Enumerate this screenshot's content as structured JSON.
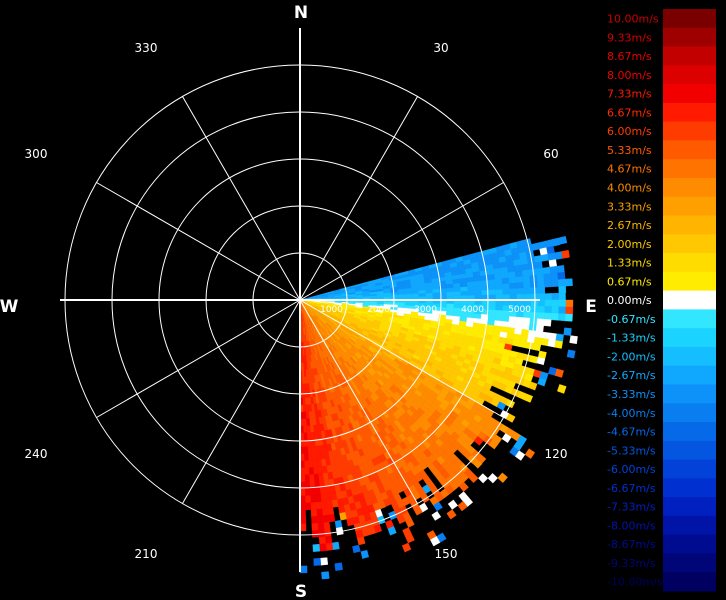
{
  "compass": {
    "north": "N",
    "east": "E",
    "south": "S",
    "west": "W"
  },
  "bearings": [
    "30",
    "60",
    "120",
    "150",
    "210",
    "240",
    "300",
    "330"
  ],
  "chart_data": {
    "type": "radial-velocity-ppi",
    "range_ring_labels": [
      "1000",
      "2000",
      "3000",
      "4000",
      "5000"
    ],
    "range_max": 5000,
    "sector": {
      "from_deg": 75,
      "to_deg": 180
    },
    "velocity_profile": [
      {
        "bearing": 78,
        "velocity": -2.8
      },
      {
        "bearing": 85,
        "velocity": -2.5
      },
      {
        "bearing": 90,
        "velocity": -1.5
      },
      {
        "bearing": 95,
        "velocity": 0.0
      },
      {
        "bearing": 100,
        "velocity": 1.2
      },
      {
        "bearing": 110,
        "velocity": 2.0
      },
      {
        "bearing": 120,
        "velocity": 2.6
      },
      {
        "bearing": 135,
        "velocity": 3.4
      },
      {
        "bearing": 150,
        "velocity": 4.2
      },
      {
        "bearing": 165,
        "velocity": 5.0
      },
      {
        "bearing": 178,
        "velocity": 6.2
      }
    ],
    "colorbar": [
      {
        "label": "10.00m/s",
        "color": "#7a0000",
        "text_color": "#c80000"
      },
      {
        "label": "9.33m/s",
        "color": "#9e0000",
        "text_color": "#d60000"
      },
      {
        "label": "8.67m/s",
        "color": "#c20000",
        "text_color": "#e60000"
      },
      {
        "label": "8.00m/s",
        "color": "#dd0000",
        "text_color": "#f00000"
      },
      {
        "label": "7.33m/s",
        "color": "#f20000",
        "text_color": "#ff1a00"
      },
      {
        "label": "6.67m/s",
        "color": "#ff1a00",
        "text_color": "#ff2a00"
      },
      {
        "label": "6.00m/s",
        "color": "#ff3c00",
        "text_color": "#ff3c00"
      },
      {
        "label": "5.33m/s",
        "color": "#ff5a00",
        "text_color": "#ff5a00"
      },
      {
        "label": "4.67m/s",
        "color": "#ff7300",
        "text_color": "#ff7300"
      },
      {
        "label": "4.00m/s",
        "color": "#ff8c00",
        "text_color": "#ff8c00"
      },
      {
        "label": "3.33m/s",
        "color": "#ffa000",
        "text_color": "#ffa000"
      },
      {
        "label": "2.67m/s",
        "color": "#ffb400",
        "text_color": "#ffb400"
      },
      {
        "label": "2.00m/s",
        "color": "#ffc800",
        "text_color": "#ffc800"
      },
      {
        "label": "1.33m/s",
        "color": "#ffdc00",
        "text_color": "#ffdc00"
      },
      {
        "label": "0.67m/s",
        "color": "#ffec00",
        "text_color": "#ffec00"
      },
      {
        "label": "0.00m/s",
        "color": "#ffffff",
        "text_color": "#ffffff"
      },
      {
        "label": "-0.67m/s",
        "color": "#33e6ff",
        "text_color": "#33e6ff"
      },
      {
        "label": "-1.33m/s",
        "color": "#1ad4ff",
        "text_color": "#1ad4ff"
      },
      {
        "label": "-2.00m/s",
        "color": "#14beff",
        "text_color": "#14beff"
      },
      {
        "label": "-2.67m/s",
        "color": "#10a8ff",
        "text_color": "#10a8ff"
      },
      {
        "label": "-3.33m/s",
        "color": "#0c92f8",
        "text_color": "#0c92f8"
      },
      {
        "label": "-4.00m/s",
        "color": "#087ef0",
        "text_color": "#087ef0"
      },
      {
        "label": "-4.67m/s",
        "color": "#066ae8",
        "text_color": "#066ae8"
      },
      {
        "label": "-5.33m/s",
        "color": "#0456e0",
        "text_color": "#0456e0"
      },
      {
        "label": "-6.00m/s",
        "color": "#0242d8",
        "text_color": "#0242d8"
      },
      {
        "label": "-6.67m/s",
        "color": "#0030d0",
        "text_color": "#0030d0"
      },
      {
        "label": "-7.33m/s",
        "color": "#0020c0",
        "text_color": "#0020c0"
      },
      {
        "label": "-8.00m/s",
        "color": "#0014a8",
        "text_color": "#0014a8"
      },
      {
        "label": "-8.67m/s",
        "color": "#000c90",
        "text_color": "#000c90"
      },
      {
        "label": "-9.33m/s",
        "color": "#000678",
        "text_color": "#000678"
      },
      {
        "label": "-10.00m/s",
        "color": "#000060",
        "text_color": "#000060"
      }
    ]
  }
}
